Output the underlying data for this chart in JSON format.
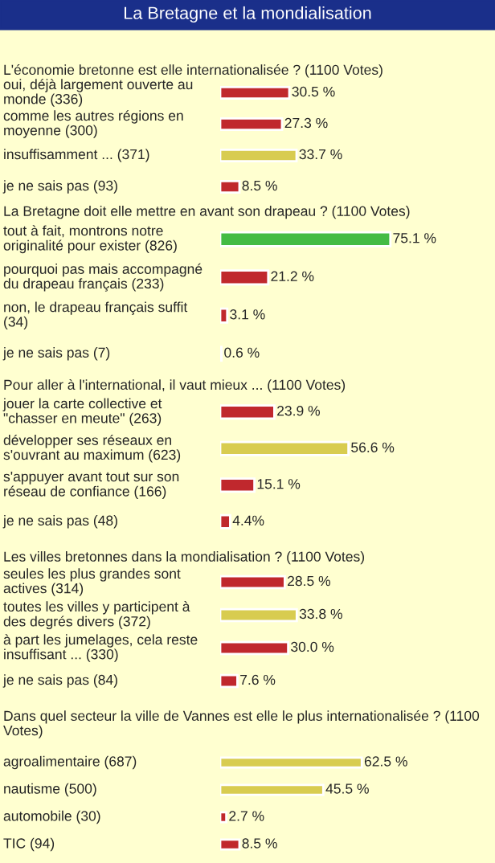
{
  "chart_data": [
    {
      "type": "bar",
      "orientation": "horizontal",
      "title": "La Bretagne et la mondialisation",
      "subtitle": "L'économie bretonne est elle internationalisée ? (1100 Votes)",
      "categories": [
        "oui, déjà largement ouverte au monde (336)",
        "comme les autres régions en moyenne (300)",
        "insuffisamment ... (371)",
        "je ne sais pas (93)"
      ],
      "values": [
        30.5,
        27.3,
        33.7,
        8.5
      ],
      "colors": [
        "#c0282d",
        "#c0282d",
        "#d8cc50",
        "#c0282d"
      ],
      "value_labels": [
        "30.5 %",
        "27.3 %",
        "33.7 %",
        "8.5 %"
      ]
    },
    {
      "type": "bar",
      "orientation": "horizontal",
      "title": "La Bretagne doit elle mettre en avant son drapeau ? (1100 Votes)",
      "categories": [
        "tout à fait, montrons notre originalité pour exister (826)",
        "pourquoi pas mais accompagné du drapeau français (233)",
        "non, le drapeau français suffit (34)",
        "je ne sais pas (7)"
      ],
      "values": [
        75.1,
        21.2,
        3.1,
        0.6
      ],
      "colors": [
        "#44bb44",
        "#c0282d",
        "#c0282d",
        "#c0282d"
      ],
      "value_labels": [
        "75.1 %",
        "21.2 %",
        "3.1 %",
        "0.6 %"
      ]
    },
    {
      "type": "bar",
      "orientation": "horizontal",
      "title": "Pour aller à l'international, il vaut mieux ... (1100 Votes)",
      "categories": [
        "jouer la carte collective et \"chasser en meute\" (263)",
        "développer ses réseaux en s'ouvrant au maximum (623)",
        "s'appuyer avant tout sur son réseau de confiance (166)",
        "je ne sais pas (48)"
      ],
      "values": [
        23.9,
        56.6,
        15.1,
        4.4
      ],
      "colors": [
        "#c0282d",
        "#d8cc50",
        "#c0282d",
        "#c0282d"
      ],
      "value_labels": [
        "23.9 %",
        "56.6 %",
        "15.1 %",
        "4.4%"
      ]
    },
    {
      "type": "bar",
      "orientation": "horizontal",
      "title": "Les villes bretonnes dans la mondialisation ? (1100 Votes)",
      "categories": [
        "seules les plus grandes sont actives (314)",
        "toutes les villes y participent à des degrés divers (372)",
        "à part les jumelages, cela reste insuffisant ... (330)",
        "je ne sais pas (84)"
      ],
      "values": [
        28.5,
        33.8,
        30.0,
        7.6
      ],
      "colors": [
        "#c0282d",
        "#d8cc50",
        "#c0282d",
        "#c0282d"
      ],
      "value_labels": [
        "28.5 %",
        "33.8 %",
        "30.0 %",
        "7.6 %"
      ]
    },
    {
      "type": "bar",
      "orientation": "horizontal",
      "title": "Dans quel secteur la ville de Vannes est elle le plus internationalisée ? (1100 Votes)",
      "categories": [
        "agroalimentaire (687)",
        "nautisme (500)",
        "automobile (30)",
        "TIC (94)"
      ],
      "values": [
        62.5,
        45.5,
        2.7,
        8.5
      ],
      "colors": [
        "#d8cc50",
        "#d8cc50",
        "#c0282d",
        "#c0282d"
      ],
      "value_labels": [
        "62.5 %",
        "45.5 %",
        "2.7 %",
        "8.5 %"
      ]
    }
  ]
}
